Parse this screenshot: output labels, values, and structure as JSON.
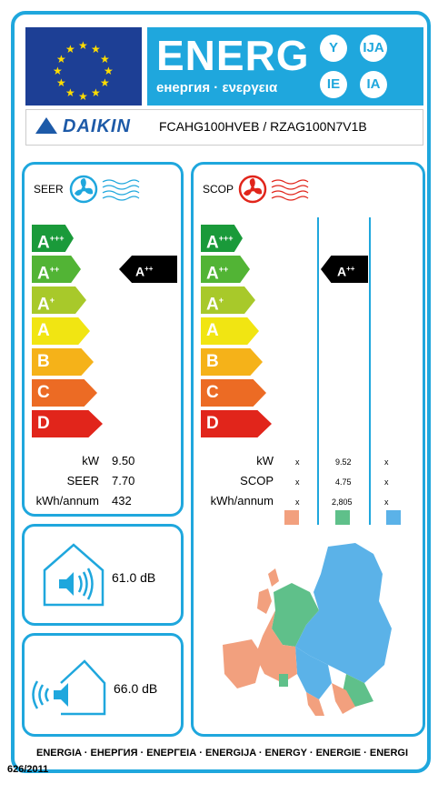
{
  "header": {
    "energy_word": "ENERG",
    "energy_sub": "енергия · ενεργεια",
    "lang_codes": [
      "Y",
      "IJA",
      "IE",
      "IA"
    ]
  },
  "brand": {
    "name": "DAIKIN",
    "model": "FCAHG100HVEB / RZAG100N7V1B"
  },
  "scale": [
    {
      "letter": "A",
      "sup": "+++",
      "color": "#1a9a3a"
    },
    {
      "letter": "A",
      "sup": "++",
      "color": "#52b435"
    },
    {
      "letter": "A",
      "sup": "+",
      "color": "#a8c92a"
    },
    {
      "letter": "A",
      "sup": "",
      "color": "#f1e512"
    },
    {
      "letter": "B",
      "sup": "",
      "color": "#f5b219"
    },
    {
      "letter": "C",
      "sup": "",
      "color": "#ec6b24"
    },
    {
      "letter": "D",
      "sup": "",
      "color": "#e1251b"
    }
  ],
  "cooling": {
    "title": "SEER",
    "class_letter": "A",
    "class_sup": "++",
    "rows": [
      {
        "label": "kW",
        "value": "9.50"
      },
      {
        "label": "SEER",
        "value": "7.70"
      },
      {
        "label": "kWh/annum",
        "value": "432"
      }
    ]
  },
  "heating": {
    "title": "SCOP",
    "class_letter": "A",
    "class_sup": "++",
    "rows": [
      {
        "label": "kW",
        "warmer": "x",
        "average": "9.52",
        "colder": "x"
      },
      {
        "label": "SCOP",
        "warmer": "x",
        "average": "4.75",
        "colder": "x"
      },
      {
        "label": "kWh/annum",
        "warmer": "x",
        "average": "2,805",
        "colder": "x"
      }
    ],
    "zone_colors": {
      "warmer": "#f2a07e",
      "average": "#5fc08a",
      "colder": "#5bb2e8"
    }
  },
  "noise": {
    "indoor": "61.0 dB",
    "outdoor": "66.0 dB"
  },
  "footer": {
    "languages": "ENERGIA · ЕНЕРГИЯ · ΕΝΕΡΓΕΙΑ · ENERGIJA · ENERGY · ENERGIE · ENERGI",
    "regulation": "626/2011"
  },
  "colors": {
    "frame": "#1fa7dd",
    "eu_blue": "#1d3f95",
    "eu_star": "#ffdd00",
    "brand_blue": "#1d5aa8",
    "heat_red": "#e1251b"
  },
  "icons": [
    "eu-stars-icon",
    "cooling-fan-icon",
    "heating-fan-icon",
    "indoor-speaker-icon",
    "outdoor-speaker-icon",
    "europe-climate-map"
  ]
}
